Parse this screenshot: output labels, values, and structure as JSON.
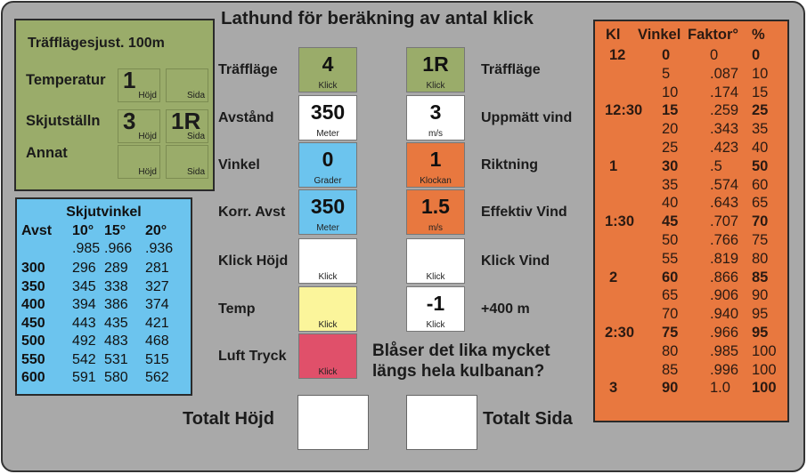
{
  "title": "Lathund för beräkning av antal klick",
  "colors": {
    "background": "#a9a9a9",
    "green": "#9aac6a",
    "blue": "#6cc4ee",
    "orange": "#e8783f",
    "yellow": "#fbf59b",
    "red": "#e0506a",
    "white": "#ffffff"
  },
  "adjust": {
    "heading": "Träfflägesjust. 100m",
    "rows": [
      {
        "label": "Temperatur",
        "hojd": "1",
        "sida": ""
      },
      {
        "label": "Skjutställn",
        "hojd": "3",
        "sida": "1R"
      },
      {
        "label": "Annat",
        "hojd": "",
        "sida": ""
      }
    ],
    "hojd_label": "Höjd",
    "sida_label": "Sida"
  },
  "angle_table": {
    "heading": "Skjutvinkel",
    "header": [
      "Avst",
      "10°",
      "15°",
      "20°"
    ],
    "factors": [
      "",
      ".985",
      ".966",
      ".936"
    ],
    "rows": [
      [
        "300",
        "296",
        "289",
        "281"
      ],
      [
        "350",
        "345",
        "338",
        "327"
      ],
      [
        "400",
        "394",
        "386",
        "374"
      ],
      [
        "450",
        "443",
        "435",
        "421"
      ],
      [
        "500",
        "492",
        "483",
        "468"
      ],
      [
        "550",
        "542",
        "531",
        "515"
      ],
      [
        "600",
        "591",
        "580",
        "562"
      ]
    ]
  },
  "left_fields": [
    {
      "label": "Träffläge",
      "value": "4",
      "unit": "Klick",
      "color": "green"
    },
    {
      "label": "Avstånd",
      "value": "350",
      "unit": "Meter",
      "color": "white"
    },
    {
      "label": "Vinkel",
      "value": "0",
      "unit": "Grader",
      "color": "blue"
    },
    {
      "label": "Korr. Avst",
      "value": "350",
      "unit": "Meter",
      "color": "blue"
    },
    {
      "label": "Klick Höjd",
      "value": "",
      "unit": "Klick",
      "color": "white"
    },
    {
      "label": "Temp",
      "value": "",
      "unit": "Klick",
      "color": "yellow"
    },
    {
      "label": "Luft Tryck",
      "value": "",
      "unit": "Klick",
      "color": "red"
    }
  ],
  "right_fields": [
    {
      "label": "Träffläge",
      "value": "1R",
      "unit": "Klick",
      "color": "green"
    },
    {
      "label": "Uppmätt vind",
      "value": "3",
      "unit": "m/s",
      "color": "white"
    },
    {
      "label": "Riktning",
      "value": "1",
      "unit": "Klockan",
      "color": "orange"
    },
    {
      "label": "Effektiv Vind",
      "value": "1.5",
      "unit": "m/s",
      "color": "orange"
    },
    {
      "label": "Klick Vind",
      "value": "",
      "unit": "Klick",
      "color": "white"
    },
    {
      "label": "+400 m",
      "value": "-1",
      "unit": "Klick",
      "color": "white"
    }
  ],
  "question": [
    "Blåser det lika mycket",
    "längs hela kulbanan?"
  ],
  "totals": {
    "hojd_label": "Totalt Höjd",
    "sida_label": "Totalt Sida",
    "hojd_value": "",
    "sida_value": ""
  },
  "wind_table": {
    "header": [
      "Kl",
      "Vinkel",
      "Faktor°",
      "%"
    ],
    "rows": [
      {
        "kl": "12",
        "vinkel": "0",
        "faktor": "0",
        "pct": "0",
        "bold": true
      },
      {
        "kl": "",
        "vinkel": "5",
        "faktor": ".087",
        "pct": "10",
        "bold": false
      },
      {
        "kl": "",
        "vinkel": "10",
        "faktor": ".174",
        "pct": "15",
        "bold": false
      },
      {
        "kl": "12:30",
        "vinkel": "15",
        "faktor": ".259",
        "pct": "25",
        "bold": true
      },
      {
        "kl": "",
        "vinkel": "20",
        "faktor": ".343",
        "pct": "35",
        "bold": false
      },
      {
        "kl": "",
        "vinkel": "25",
        "faktor": ".423",
        "pct": "40",
        "bold": false
      },
      {
        "kl": "1",
        "vinkel": "30",
        "faktor": ".5",
        "pct": "50",
        "bold": true
      },
      {
        "kl": "",
        "vinkel": "35",
        "faktor": ".574",
        "pct": "60",
        "bold": false
      },
      {
        "kl": "",
        "vinkel": "40",
        "faktor": ".643",
        "pct": "65",
        "bold": false
      },
      {
        "kl": "1:30",
        "vinkel": "45",
        "faktor": ".707",
        "pct": "70",
        "bold": true
      },
      {
        "kl": "",
        "vinkel": "50",
        "faktor": ".766",
        "pct": "75",
        "bold": false
      },
      {
        "kl": "",
        "vinkel": "55",
        "faktor": ".819",
        "pct": "80",
        "bold": false
      },
      {
        "kl": "2",
        "vinkel": "60",
        "faktor": ".866",
        "pct": "85",
        "bold": true
      },
      {
        "kl": "",
        "vinkel": "65",
        "faktor": ".906",
        "pct": "90",
        "bold": false
      },
      {
        "kl": "",
        "vinkel": "70",
        "faktor": ".940",
        "pct": "95",
        "bold": false
      },
      {
        "kl": "2:30",
        "vinkel": "75",
        "faktor": ".966",
        "pct": "95",
        "bold": true
      },
      {
        "kl": "",
        "vinkel": "80",
        "faktor": ".985",
        "pct": "100",
        "bold": false
      },
      {
        "kl": "",
        "vinkel": "85",
        "faktor": ".996",
        "pct": "100",
        "bold": false
      },
      {
        "kl": "3",
        "vinkel": "90",
        "faktor": "1.0",
        "pct": "100",
        "bold": true
      }
    ]
  }
}
